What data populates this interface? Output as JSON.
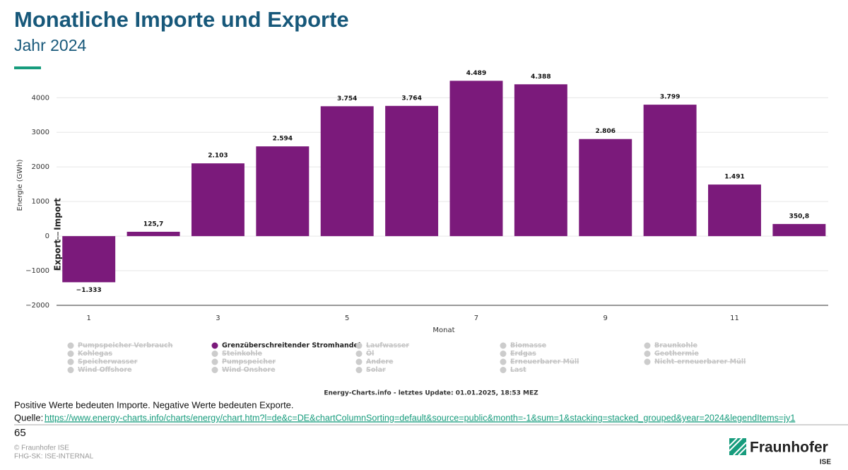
{
  "chart_data": {
    "type": "bar",
    "title": "Monatliche Importe und Exporte",
    "subtitle": "Jahr 2024",
    "y_label": "Energie (GWh)",
    "import_label": "Import",
    "export_label": "Export",
    "x_label": "Monat",
    "x": [
      1,
      2,
      3,
      4,
      5,
      6,
      7,
      8,
      9,
      10,
      11,
      12
    ],
    "xlim": [
      0.5,
      12.45
    ],
    "xticks": [
      1,
      3,
      5,
      7,
      9,
      11
    ],
    "ylim": [
      -2000,
      4700
    ],
    "yticks": [
      {
        "value": -2000,
        "label": "−2000"
      },
      {
        "value": -1000,
        "label": "−1000"
      },
      0,
      1000,
      2000,
      3000,
      4000
    ],
    "grid": true,
    "series": [
      {
        "name": "Grenzüberschreitender Stromhandel",
        "color": "#7b1a7b",
        "values": [
          -1333,
          125.7,
          2103,
          2594,
          3754,
          3764,
          4489,
          4388,
          2806,
          3799,
          1491,
          350.8
        ],
        "value_labels": [
          "−1.333",
          "125,7",
          "2.103",
          "2.594",
          "3.754",
          "3.764",
          "4.489",
          "4.388",
          "2.806",
          "3.799",
          "1.491",
          "350,8"
        ]
      }
    ],
    "legend_hidden": [
      "Pumpspeicher Verbrauch",
      "Laufwasser",
      "Biomasse",
      "Braunkohle",
      "Kohlegas",
      "Steinkohle",
      "Öl",
      "Erdgas",
      "Geothermie",
      "Speicherwasser",
      "Pumpspeicher",
      "Andere",
      "Erneuerbarer Müll",
      "Nicht-erneuerbarer Müll",
      "Wind Offshore",
      "Wind Onshore",
      "Solar",
      "Last"
    ],
    "credit": "Energy-Charts.info - letztes Update: 01.01.2025, 18:53 MEZ"
  },
  "note": "Positive Werte bedeuten Importe. Negative Werte bedeuten Exporte.",
  "source_label": "Quelle:",
  "source_url": "https://www.energy-charts.info/charts/energy/chart.htm?l=de&c=DE&chartColumnSorting=default&source=public&month=-1&sum=1&stacking=stacked_grouped&year=2024&legendItems=jy1",
  "page_number": "65",
  "copyright": "© Fraunhofer ISE",
  "classification": "FHG-SK: ISE-INTERNAL",
  "logo": {
    "name": "Fraunhofer",
    "unit": "ISE"
  }
}
